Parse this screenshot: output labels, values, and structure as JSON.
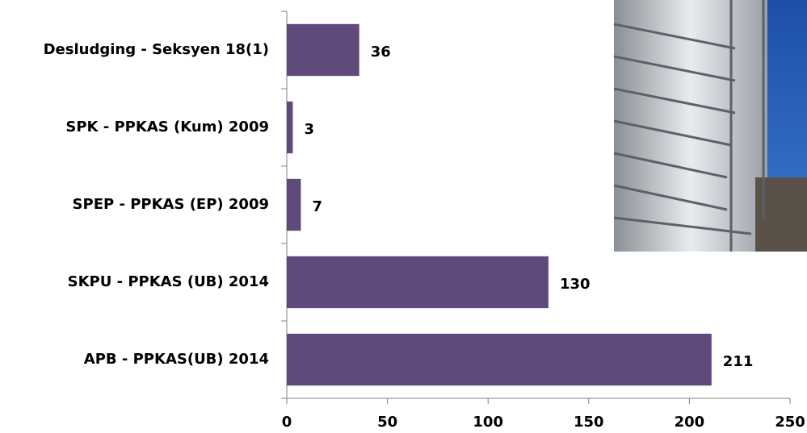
{
  "chart_data": {
    "type": "bar",
    "orientation": "horizontal",
    "categories": [
      "Desludging - Seksyen 18(1)",
      "SPK - PPKAS (Kum) 2009",
      "SPEP - PPKAS (EP) 2009",
      "SKPU - PPKAS (UB) 2014",
      "APB - PPKAS(UB) 2014"
    ],
    "values": [
      36,
      3,
      7,
      130,
      211
    ],
    "color": "#604a7b",
    "xlim": [
      0,
      250
    ],
    "xticks": [
      0,
      50,
      100,
      150,
      200,
      250
    ],
    "grid": false
  }
}
